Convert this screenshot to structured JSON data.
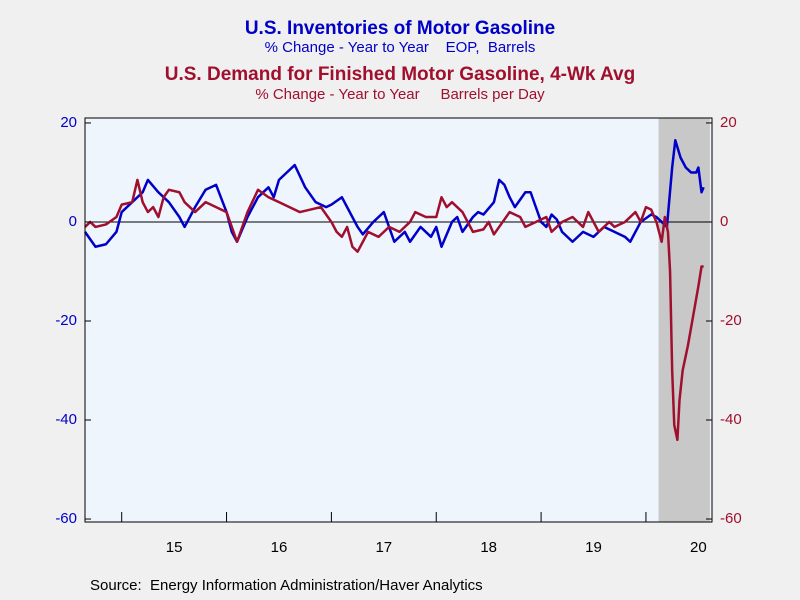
{
  "chart_data": {
    "type": "line",
    "series": [
      {
        "name": "U.S. Inventories of Motor Gasoline",
        "subtitle": "% Change - Year to Year    EOP,  Barrels",
        "color": "#0000c8",
        "axis": "y",
        "x": [
          2014.65,
          2014.75,
          2014.85,
          2014.95,
          2015.0,
          2015.1,
          2015.2,
          2015.25,
          2015.35,
          2015.45,
          2015.55,
          2015.6,
          2015.7,
          2015.8,
          2015.9,
          2016.0,
          2016.05,
          2016.1,
          2016.2,
          2016.3,
          2016.4,
          2016.45,
          2016.5,
          2016.6,
          2016.65,
          2016.75,
          2016.85,
          2016.95,
          2017.0,
          2017.1,
          2017.15,
          2017.25,
          2017.3,
          2017.4,
          2017.5,
          2017.55,
          2017.6,
          2017.7,
          2017.75,
          2017.85,
          2017.95,
          2018.0,
          2018.05,
          2018.15,
          2018.2,
          2018.25,
          2018.35,
          2018.4,
          2018.45,
          2018.55,
          2018.6,
          2018.65,
          2018.7,
          2018.75,
          2018.85,
          2018.9,
          2018.95,
          2019.0,
          2019.05,
          2019.1,
          2019.15,
          2019.2,
          2019.3,
          2019.4,
          2019.5,
          2019.55,
          2019.6,
          2019.7,
          2019.8,
          2019.85,
          2019.95,
          2020.05,
          2020.1,
          2020.15,
          2020.2,
          2020.25,
          2020.28,
          2020.33,
          2020.38,
          2020.43,
          2020.48,
          2020.5,
          2020.53,
          2020.55
        ],
        "values": [
          -2,
          -5,
          -4.5,
          -2,
          2,
          4,
          6,
          8.5,
          6,
          4,
          1,
          -1,
          3,
          6.5,
          7.5,
          2,
          -2,
          -4,
          1,
          5,
          7,
          5,
          8.5,
          10.5,
          11.5,
          7,
          4,
          3,
          3.5,
          5,
          3,
          -1,
          -2.5,
          0,
          2,
          -1,
          -4,
          -2,
          -4,
          -1,
          -3,
          -1,
          -5,
          0,
          1,
          -2,
          1,
          2,
          1.5,
          4,
          8.5,
          7.5,
          5,
          3,
          6,
          6,
          3,
          0,
          -1,
          1.5,
          0.5,
          -2,
          -4,
          -2,
          -3,
          -2,
          -1,
          -2,
          -3,
          -4,
          0,
          1.5,
          1,
          0,
          -1,
          11,
          16.5,
          13,
          11,
          10,
          10,
          11,
          6,
          7
        ]
      },
      {
        "name": "U.S. Demand for Finished Motor Gasoline, 4-Wk Avg",
        "subtitle": "% Change - Year to Year     Barrels per Day",
        "color": "#a0102e",
        "axis": "y2",
        "x": [
          2014.65,
          2014.7,
          2014.75,
          2014.85,
          2014.95,
          2015.0,
          2015.1,
          2015.15,
          2015.2,
          2015.25,
          2015.3,
          2015.35,
          2015.4,
          2015.45,
          2015.55,
          2015.6,
          2015.7,
          2015.8,
          2015.9,
          2016.0,
          2016.1,
          2016.2,
          2016.3,
          2016.4,
          2016.5,
          2016.6,
          2016.7,
          2016.8,
          2016.9,
          2017.0,
          2017.05,
          2017.1,
          2017.15,
          2017.2,
          2017.25,
          2017.35,
          2017.45,
          2017.55,
          2017.65,
          2017.75,
          2017.8,
          2017.9,
          2018.0,
          2018.05,
          2018.1,
          2018.15,
          2018.25,
          2018.35,
          2018.45,
          2018.5,
          2018.55,
          2018.6,
          2018.7,
          2018.8,
          2018.85,
          2018.95,
          2019.05,
          2019.1,
          2019.2,
          2019.3,
          2019.4,
          2019.45,
          2019.55,
          2019.65,
          2019.7,
          2019.8,
          2019.9,
          2019.95,
          2020.0,
          2020.05,
          2020.1,
          2020.15,
          2020.18,
          2020.21,
          2020.23,
          2020.25,
          2020.27,
          2020.3,
          2020.32,
          2020.35,
          2020.4,
          2020.45,
          2020.5,
          2020.53,
          2020.55
        ],
        "values": [
          -1,
          0,
          -1,
          -0.5,
          1,
          3.5,
          4,
          8.5,
          4,
          2,
          3,
          1,
          5,
          6.5,
          6,
          4,
          2,
          4,
          3,
          2,
          -4,
          2,
          6.5,
          5,
          4,
          3,
          2,
          2.5,
          3,
          0,
          -2,
          -3,
          -1,
          -5,
          -6,
          -2,
          -3,
          -1,
          -2,
          0,
          2,
          1,
          1,
          5,
          3,
          4,
          2,
          -2,
          -1.5,
          0,
          -2.5,
          -1,
          2,
          1,
          -1,
          0,
          1,
          -2,
          0,
          1,
          -1,
          2,
          -2,
          0,
          -1,
          0,
          2,
          0,
          3,
          2.5,
          0,
          -4,
          1,
          -2,
          -10,
          -30,
          -41,
          -44,
          -36,
          -30,
          -25,
          -19,
          -13,
          -9,
          -9
        ]
      }
    ],
    "recession": [
      2020.12,
      2020.61
    ],
    "xlim": [
      2014.65,
      2020.63
    ],
    "xticks": [
      {
        "value": 2015,
        "label": "15"
      },
      {
        "value": 2016,
        "label": "16"
      },
      {
        "value": 2017,
        "label": "17"
      },
      {
        "value": 2018,
        "label": "18"
      },
      {
        "value": 2019,
        "label": "19"
      },
      {
        "value": 2020,
        "label": "20"
      }
    ],
    "ylim": [
      -60.6,
      21
    ],
    "yticks": [
      20,
      0,
      -20,
      -40,
      -60
    ],
    "y2lim": [
      -60.6,
      21
    ],
    "y2ticks": [
      20,
      0,
      -20,
      -40,
      -60
    ],
    "source": "Source:  Energy Information Administration/Haver Analytics"
  }
}
